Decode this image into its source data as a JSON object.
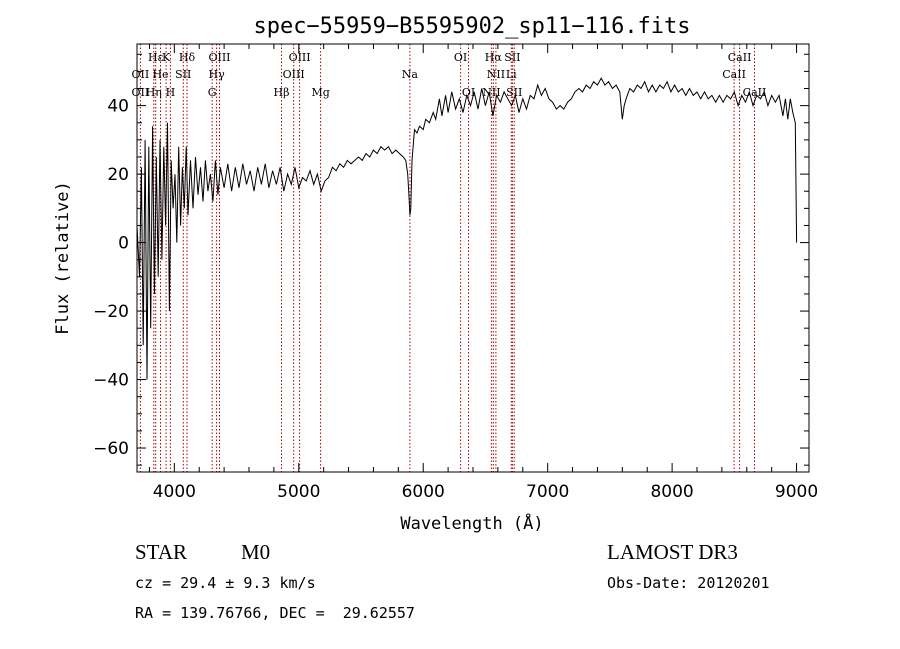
{
  "chart_data": {
    "type": "line",
    "title": "spec−55959−B5595902_sp11−116.fits",
    "xlabel": "Wavelength (Å)",
    "ylabel": "Flux (relative)",
    "xlim": [
      3700,
      9100
    ],
    "ylim": [
      -67,
      58
    ],
    "xticks": [
      4000,
      5000,
      6000,
      7000,
      8000,
      9000
    ],
    "yticks": [
      -60,
      -40,
      -20,
      0,
      20,
      40
    ],
    "ytick_labels": [
      "−60",
      "−40",
      "−20",
      "0",
      "20",
      "40"
    ],
    "series": [
      {
        "name": "flux",
        "points": [
          [
            3700,
            5
          ],
          [
            3720,
            -10
          ],
          [
            3735,
            22
          ],
          [
            3750,
            -30
          ],
          [
            3765,
            30
          ],
          [
            3780,
            -40
          ],
          [
            3795,
            28
          ],
          [
            3810,
            -25
          ],
          [
            3825,
            34
          ],
          [
            3840,
            -15
          ],
          [
            3855,
            25
          ],
          [
            3870,
            -10
          ],
          [
            3885,
            30
          ],
          [
            3900,
            -5
          ],
          [
            3915,
            28
          ],
          [
            3930,
            5
          ],
          [
            3945,
            35
          ],
          [
            3960,
            -20
          ],
          [
            3975,
            24
          ],
          [
            3990,
            10
          ],
          [
            4005,
            20
          ],
          [
            4020,
            0
          ],
          [
            4035,
            28
          ],
          [
            4050,
            5
          ],
          [
            4065,
            22
          ],
          [
            4080,
            10
          ],
          [
            4095,
            28
          ],
          [
            4110,
            8
          ],
          [
            4130,
            24
          ],
          [
            4150,
            10
          ],
          [
            4170,
            25
          ],
          [
            4190,
            14
          ],
          [
            4210,
            22
          ],
          [
            4230,
            12
          ],
          [
            4250,
            24
          ],
          [
            4270,
            15
          ],
          [
            4290,
            20
          ],
          [
            4310,
            12
          ],
          [
            4330,
            24
          ],
          [
            4350,
            14
          ],
          [
            4370,
            22
          ],
          [
            4400,
            16
          ],
          [
            4430,
            23
          ],
          [
            4460,
            15
          ],
          [
            4490,
            22
          ],
          [
            4520,
            16
          ],
          [
            4550,
            23
          ],
          [
            4580,
            17
          ],
          [
            4610,
            21
          ],
          [
            4640,
            15
          ],
          [
            4670,
            22
          ],
          [
            4700,
            17
          ],
          [
            4730,
            23
          ],
          [
            4760,
            16
          ],
          [
            4790,
            21
          ],
          [
            4820,
            17
          ],
          [
            4850,
            22
          ],
          [
            4880,
            15
          ],
          [
            4910,
            20
          ],
          [
            4940,
            17
          ],
          [
            4970,
            22
          ],
          [
            5000,
            16
          ],
          [
            5030,
            19
          ],
          [
            5060,
            18
          ],
          [
            5090,
            21
          ],
          [
            5120,
            17
          ],
          [
            5150,
            20
          ],
          [
            5180,
            15
          ],
          [
            5210,
            18
          ],
          [
            5240,
            19
          ],
          [
            5270,
            22
          ],
          [
            5300,
            21
          ],
          [
            5330,
            23
          ],
          [
            5360,
            22
          ],
          [
            5390,
            24
          ],
          [
            5420,
            23
          ],
          [
            5450,
            24
          ],
          [
            5480,
            25
          ],
          [
            5510,
            24
          ],
          [
            5540,
            26
          ],
          [
            5570,
            25
          ],
          [
            5600,
            27
          ],
          [
            5630,
            26
          ],
          [
            5660,
            28
          ],
          [
            5690,
            27
          ],
          [
            5720,
            28
          ],
          [
            5750,
            26
          ],
          [
            5780,
            27
          ],
          [
            5810,
            26
          ],
          [
            5840,
            25
          ],
          [
            5860,
            24
          ],
          [
            5875,
            20
          ],
          [
            5885,
            14
          ],
          [
            5893,
            8
          ],
          [
            5900,
            10
          ],
          [
            5910,
            24
          ],
          [
            5930,
            33
          ],
          [
            5950,
            32
          ],
          [
            5970,
            34
          ],
          [
            6000,
            33
          ],
          [
            6020,
            36
          ],
          [
            6050,
            35
          ],
          [
            6080,
            38
          ],
          [
            6100,
            36
          ],
          [
            6130,
            42
          ],
          [
            6150,
            37
          ],
          [
            6180,
            43
          ],
          [
            6200,
            38
          ],
          [
            6230,
            44
          ],
          [
            6260,
            39
          ],
          [
            6290,
            42
          ],
          [
            6320,
            38
          ],
          [
            6350,
            43
          ],
          [
            6380,
            40
          ],
          [
            6410,
            44
          ],
          [
            6440,
            39
          ],
          [
            6470,
            45
          ],
          [
            6500,
            40
          ],
          [
            6530,
            44
          ],
          [
            6560,
            37
          ],
          [
            6590,
            43
          ],
          [
            6620,
            41
          ],
          [
            6650,
            44
          ],
          [
            6680,
            42
          ],
          [
            6710,
            40
          ],
          [
            6740,
            43
          ],
          [
            6770,
            38
          ],
          [
            6800,
            42
          ],
          [
            6830,
            39
          ],
          [
            6860,
            43
          ],
          [
            6890,
            42
          ],
          [
            6920,
            46
          ],
          [
            6950,
            43
          ],
          [
            6980,
            45
          ],
          [
            7010,
            42
          ],
          [
            7040,
            41
          ],
          [
            7070,
            39
          ],
          [
            7100,
            40
          ],
          [
            7130,
            39
          ],
          [
            7160,
            41
          ],
          [
            7190,
            42
          ],
          [
            7220,
            44
          ],
          [
            7250,
            45
          ],
          [
            7280,
            44
          ],
          [
            7310,
            46
          ],
          [
            7340,
            45
          ],
          [
            7370,
            47
          ],
          [
            7400,
            46
          ],
          [
            7430,
            48
          ],
          [
            7460,
            46
          ],
          [
            7490,
            47
          ],
          [
            7520,
            45
          ],
          [
            7550,
            46
          ],
          [
            7580,
            44
          ],
          [
            7600,
            36
          ],
          [
            7615,
            40
          ],
          [
            7630,
            42
          ],
          [
            7660,
            45
          ],
          [
            7690,
            44
          ],
          [
            7720,
            46
          ],
          [
            7750,
            45
          ],
          [
            7780,
            47
          ],
          [
            7810,
            44
          ],
          [
            7840,
            46
          ],
          [
            7870,
            44
          ],
          [
            7900,
            46
          ],
          [
            7930,
            45
          ],
          [
            7960,
            47
          ],
          [
            7990,
            44
          ],
          [
            8020,
            46
          ],
          [
            8050,
            44
          ],
          [
            8080,
            45
          ],
          [
            8110,
            43
          ],
          [
            8140,
            45
          ],
          [
            8170,
            43
          ],
          [
            8200,
            44
          ],
          [
            8230,
            42
          ],
          [
            8260,
            44
          ],
          [
            8290,
            42
          ],
          [
            8320,
            43
          ],
          [
            8350,
            41
          ],
          [
            8380,
            43
          ],
          [
            8410,
            41
          ],
          [
            8440,
            43
          ],
          [
            8470,
            42
          ],
          [
            8500,
            44
          ],
          [
            8530,
            40
          ],
          [
            8560,
            43
          ],
          [
            8590,
            41
          ],
          [
            8620,
            44
          ],
          [
            8650,
            40
          ],
          [
            8680,
            43
          ],
          [
            8710,
            42
          ],
          [
            8740,
            44
          ],
          [
            8770,
            40
          ],
          [
            8800,
            43
          ],
          [
            8830,
            41
          ],
          [
            8860,
            43
          ],
          [
            8890,
            37
          ],
          [
            8910,
            42
          ],
          [
            8930,
            36
          ],
          [
            8950,
            42
          ],
          [
            8970,
            38
          ],
          [
            8990,
            35
          ],
          [
            9000,
            0
          ]
        ]
      }
    ],
    "line_labels": [
      {
        "text": "Hε",
        "row": 1,
        "wl": 3850
      },
      {
        "text": "K",
        "row": 1,
        "wl": 3934
      },
      {
        "text": "Hδ",
        "row": 1,
        "wl": 4102
      },
      {
        "text": "OIII",
        "row": 1,
        "wl": 4363
      },
      {
        "text": "OIII",
        "row": 1,
        "wl": 5007
      },
      {
        "text": "OI",
        "row": 1,
        "wl": 6300
      },
      {
        "text": "Hα",
        "row": 1,
        "wl": 6563
      },
      {
        "text": "SII",
        "row": 1,
        "wl": 6717
      },
      {
        "text": "CaII",
        "row": 1,
        "wl": 8542
      },
      {
        "text": "OII",
        "row": 2,
        "wl": 3727
      },
      {
        "text": "He",
        "row": 2,
        "wl": 3889
      },
      {
        "text": "SII",
        "row": 2,
        "wl": 4072
      },
      {
        "text": "Hγ",
        "row": 2,
        "wl": 4340
      },
      {
        "text": "OIII",
        "row": 2,
        "wl": 4959
      },
      {
        "text": "Na",
        "row": 2,
        "wl": 5893
      },
      {
        "text": "NII",
        "row": 2,
        "wl": 6584
      },
      {
        "text": "Li",
        "row": 2,
        "wl": 6708
      },
      {
        "text": "CaII",
        "row": 2,
        "wl": 8498
      },
      {
        "text": "OII",
        "row": 3,
        "wl": 3727
      },
      {
        "text": "Hη",
        "row": 3,
        "wl": 3835
      },
      {
        "text": "H",
        "row": 3,
        "wl": 3968
      },
      {
        "text": "G",
        "row": 3,
        "wl": 4304
      },
      {
        "text": "Hβ",
        "row": 3,
        "wl": 4861
      },
      {
        "text": "Mg",
        "row": 3,
        "wl": 5175
      },
      {
        "text": "OI",
        "row": 3,
        "wl": 6364
      },
      {
        "text": "NII",
        "row": 3,
        "wl": 6548
      },
      {
        "text": "SII",
        "row": 3,
        "wl": 6731
      },
      {
        "text": "CaII",
        "row": 3,
        "wl": 8662
      }
    ],
    "line_markers": [
      3727,
      3835,
      3850,
      3889,
      3934,
      3968,
      4072,
      4102,
      4304,
      4340,
      4363,
      4861,
      4959,
      5007,
      5175,
      5893,
      6300,
      6364,
      6548,
      6563,
      6584,
      6708,
      6717,
      6731,
      8498,
      8542,
      8662
    ],
    "colors": {
      "flux": "#000000",
      "marker": "#b00000"
    }
  },
  "info": {
    "class": "STAR",
    "subclass": "M0",
    "survey": "LAMOST DR3",
    "cz": "cz = 29.4 ± 9.3 km/s",
    "obs_date": "Obs-Date: 20120201",
    "radec": "RA = 139.76766, DEC =  29.62557"
  }
}
